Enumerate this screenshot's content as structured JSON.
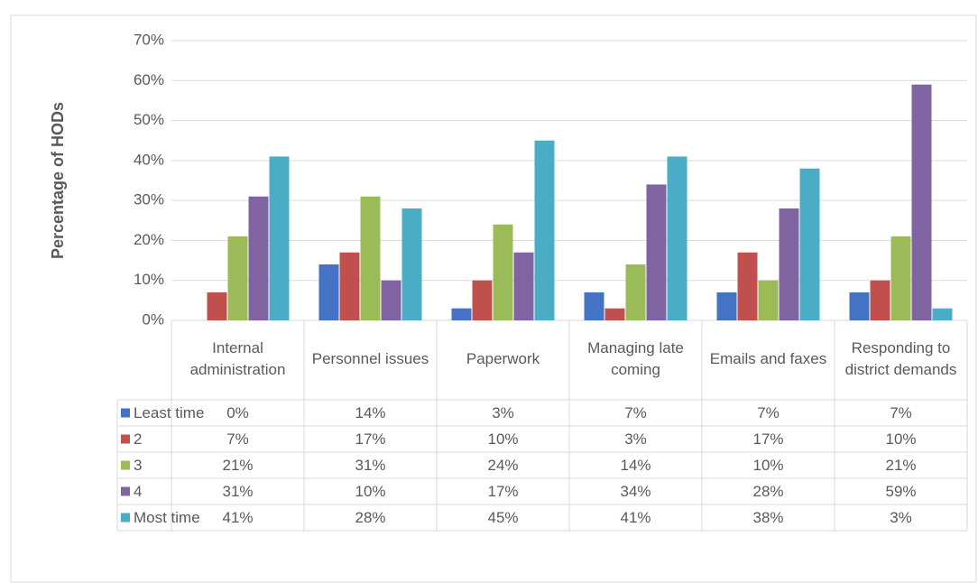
{
  "chart_data": {
    "type": "bar",
    "y_label": "Percentage of HODs",
    "categories": [
      "Internal administration",
      "Personnel issues",
      "Paperwork",
      "Managing late coming",
      "Emails and faxes",
      "Responding to district demands"
    ],
    "series": [
      {
        "name": "Least time",
        "color": "#4472c4",
        "values": [
          0,
          14,
          3,
          7,
          7,
          7
        ],
        "value_labels": [
          "0%",
          "14%",
          "3%",
          "7%",
          "7%",
          "7%"
        ]
      },
      {
        "name": "2",
        "color": "#c0504d",
        "values": [
          7,
          17,
          10,
          3,
          17,
          10
        ],
        "value_labels": [
          "7%",
          "17%",
          "10%",
          "3%",
          "17%",
          "10%"
        ]
      },
      {
        "name": "3",
        "color": "#9bbb59",
        "values": [
          21,
          31,
          24,
          14,
          10,
          21
        ],
        "value_labels": [
          "21%",
          "31%",
          "24%",
          "14%",
          "10%",
          "21%"
        ]
      },
      {
        "name": "4",
        "color": "#8064a2",
        "values": [
          31,
          10,
          17,
          34,
          28,
          59
        ],
        "value_labels": [
          "31%",
          "10%",
          "17%",
          "34%",
          "28%",
          "59%"
        ]
      },
      {
        "name": "Most time",
        "color": "#4bacc6",
        "values": [
          41,
          28,
          45,
          41,
          38,
          3
        ],
        "value_labels": [
          "41%",
          "28%",
          "45%",
          "41%",
          "38%",
          "3%"
        ]
      }
    ],
    "ylim": [
      0,
      70
    ],
    "yticks": [
      {
        "value": 0,
        "label": "0%"
      },
      {
        "value": 10,
        "label": "10%"
      },
      {
        "value": 20,
        "label": "20%"
      },
      {
        "value": 30,
        "label": "30%"
      },
      {
        "value": 40,
        "label": "40%"
      },
      {
        "value": 50,
        "label": "50%"
      },
      {
        "value": 60,
        "label": "60%"
      },
      {
        "value": 70,
        "label": "70%"
      }
    ],
    "grid": true
  }
}
